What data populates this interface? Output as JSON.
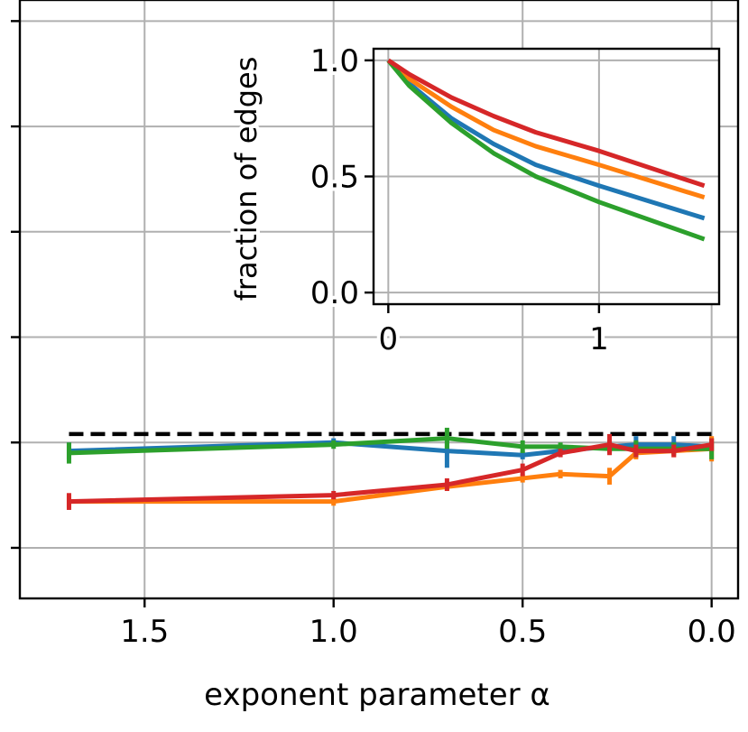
{
  "colors": {
    "blue": "#1f77b4",
    "orange": "#ff7f0e",
    "green": "#2ca02c",
    "red": "#d62728",
    "grid": "#b0b0b0",
    "reference": "#000000"
  },
  "chart_data": [
    {
      "type": "line",
      "xlabel": "exponent parameter α",
      "ylabel": "",
      "x_inverted": true,
      "xlim": [
        1.83,
        -0.07
      ],
      "ylim": [
        -0.24,
        2.6
      ],
      "xticks": [
        1.5,
        1.0,
        0.5,
        0.0
      ],
      "xtick_labels": [
        "1.5",
        "1.0",
        "0.5",
        "0.0"
      ],
      "yticks": [
        0,
        0.5,
        1,
        1.5,
        2,
        2.5
      ],
      "ytick_labels_visible": false,
      "grid": true,
      "reference_line": {
        "style": "dashed",
        "color": "#000000",
        "y": 0.54,
        "x_range": [
          1.7,
          0.0
        ]
      },
      "series": [
        {
          "color": "#1f77b4",
          "x": [
            1.7,
            1.0,
            0.7,
            0.5,
            0.4,
            0.27,
            0.2,
            0.1,
            0.0
          ],
          "y": [
            0.46,
            0.5,
            0.46,
            0.44,
            0.46,
            0.48,
            0.49,
            0.49,
            0.48
          ],
          "err": [
            0.04,
            0.02,
            0.08,
            0.02,
            0.02,
            0.03,
            0.04,
            0.04,
            0.02
          ]
        },
        {
          "color": "#ff7f0e",
          "x": [
            1.7,
            1.0,
            0.7,
            0.5,
            0.4,
            0.27,
            0.2,
            0.1,
            0.0
          ],
          "y": [
            0.22,
            0.22,
            0.29,
            0.33,
            0.35,
            0.34,
            0.45,
            0.46,
            0.47
          ],
          "err": [
            0.03,
            0.02,
            0.02,
            0.02,
            0.02,
            0.04,
            0.03,
            0.03,
            0.06
          ]
        },
        {
          "color": "#2ca02c",
          "x": [
            1.7,
            1.0,
            0.7,
            0.5,
            0.4,
            0.27,
            0.2,
            0.1,
            0.0
          ],
          "y": [
            0.45,
            0.49,
            0.52,
            0.48,
            0.48,
            0.47,
            0.47,
            0.47,
            0.47
          ],
          "err": [
            0.05,
            0.02,
            0.05,
            0.03,
            0.02,
            0.02,
            0.04,
            0.03,
            0.05
          ]
        },
        {
          "color": "#d62728",
          "x": [
            1.7,
            1.0,
            0.7,
            0.5,
            0.4,
            0.27,
            0.2,
            0.1,
            0.0
          ],
          "y": [
            0.22,
            0.25,
            0.3,
            0.37,
            0.45,
            0.49,
            0.46,
            0.46,
            0.49
          ],
          "err": [
            0.04,
            0.02,
            0.03,
            0.03,
            0.02,
            0.05,
            0.03,
            0.03,
            0.03
          ]
        }
      ]
    },
    {
      "type": "line",
      "xlabel": "",
      "ylabel": "fraction of edges",
      "xlim": [
        -0.07,
        1.57
      ],
      "ylim": [
        -0.05,
        1.05
      ],
      "xticks": [
        0,
        1
      ],
      "xtick_labels": [
        "0",
        "1"
      ],
      "yticks": [
        0.0,
        0.5,
        1.0
      ],
      "ytick_labels": [
        "0.0",
        "0.5",
        "1.0"
      ],
      "grid": true,
      "series": [
        {
          "color": "#1f77b4",
          "x": [
            0,
            0.1,
            0.3,
            0.5,
            0.7,
            1.0,
            1.5
          ],
          "y": [
            1.0,
            0.9,
            0.75,
            0.64,
            0.55,
            0.46,
            0.32
          ]
        },
        {
          "color": "#ff7f0e",
          "x": [
            0,
            0.1,
            0.3,
            0.5,
            0.7,
            1.0,
            1.5
          ],
          "y": [
            1.0,
            0.92,
            0.8,
            0.7,
            0.63,
            0.55,
            0.41
          ]
        },
        {
          "color": "#2ca02c",
          "x": [
            0,
            0.1,
            0.3,
            0.5,
            0.7,
            1.0,
            1.5
          ],
          "y": [
            1.0,
            0.89,
            0.73,
            0.6,
            0.5,
            0.39,
            0.23
          ]
        },
        {
          "color": "#d62728",
          "x": [
            0,
            0.1,
            0.3,
            0.5,
            0.7,
            1.0,
            1.5
          ],
          "y": [
            1.0,
            0.94,
            0.84,
            0.76,
            0.69,
            0.61,
            0.46
          ]
        }
      ]
    }
  ]
}
